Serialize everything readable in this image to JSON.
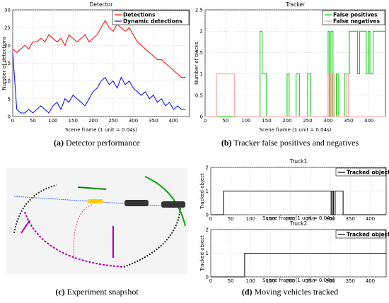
{
  "captions": {
    "a_letter": "(a)",
    "a_text": "Detector performance",
    "b_letter": "(b)",
    "b_text": "Tracker false positives and negatives",
    "c_letter": "(c)",
    "c_text": "Experiment snapshot",
    "d_letter": "(d)",
    "d_text": "Moving vehicles tracked"
  },
  "chart_data": [
    {
      "type": "line",
      "title": "Detector",
      "xlabel": "Scene frame (1 unit = 0.04s)",
      "ylabel": "Number of detections",
      "xlim": [
        0,
        440
      ],
      "ylim": [
        0,
        30
      ],
      "xticks": [
        0,
        50,
        100,
        150,
        200,
        250,
        300,
        350,
        400
      ],
      "yticks": [
        0,
        5,
        10,
        15,
        20,
        25,
        30
      ],
      "grid": true,
      "legend_position": "top-right",
      "series": [
        {
          "name": "Detections",
          "color": "#ff0000",
          "x": [
            0,
            10,
            20,
            30,
            40,
            50,
            60,
            70,
            80,
            90,
            100,
            110,
            120,
            130,
            140,
            150,
            160,
            170,
            180,
            190,
            200,
            210,
            220,
            230,
            240,
            250,
            260,
            270,
            280,
            290,
            300,
            310,
            320,
            330,
            340,
            350,
            360,
            370,
            380,
            390,
            400,
            410,
            420,
            430
          ],
          "y": [
            19,
            18,
            19,
            20,
            19,
            21,
            21,
            22,
            21,
            23,
            22,
            21,
            22,
            20,
            23,
            22,
            21,
            22,
            23,
            21,
            22,
            23,
            25,
            27,
            25,
            24,
            26,
            25,
            24,
            25,
            23,
            21,
            20,
            19,
            18,
            17,
            16,
            16,
            15,
            14,
            13,
            12,
            11,
            11
          ]
        },
        {
          "name": "Dynamic detections",
          "color": "#0000ff",
          "x": [
            0,
            10,
            20,
            30,
            40,
            50,
            60,
            70,
            80,
            90,
            100,
            110,
            120,
            130,
            140,
            150,
            160,
            170,
            180,
            190,
            200,
            210,
            220,
            230,
            240,
            250,
            260,
            270,
            280,
            290,
            300,
            310,
            320,
            330,
            340,
            350,
            360,
            370,
            380,
            390,
            400,
            410,
            420,
            430
          ],
          "y": [
            18,
            2,
            1,
            1,
            2,
            1,
            2,
            3,
            2,
            1,
            3,
            4,
            2,
            5,
            4,
            6,
            5,
            4,
            3,
            5,
            7,
            8,
            10,
            11,
            9,
            10,
            8,
            11,
            9,
            10,
            8,
            7,
            6,
            7,
            5,
            6,
            4,
            5,
            3,
            4,
            2,
            3,
            2,
            2
          ]
        }
      ]
    },
    {
      "type": "line",
      "title": "Tracker",
      "xlabel": "Scene frame (1 unit = 0.04s)",
      "ylabel": "Number of tracks",
      "xlim": [
        0,
        440
      ],
      "ylim": [
        0,
        2.5
      ],
      "xticks": [
        0,
        50,
        100,
        150,
        200,
        250,
        300,
        350,
        400
      ],
      "yticks": [
        0,
        0.5,
        1,
        1.5,
        2,
        2.5
      ],
      "grid": true,
      "legend_position": "top-right",
      "series": [
        {
          "name": "False positives",
          "color": "#00cc00",
          "x": [
            0,
            134,
            134,
            139,
            139,
            150,
            150,
            200,
            200,
            205,
            205,
            222,
            222,
            230,
            230,
            250,
            250,
            258,
            258,
            300,
            300,
            303,
            303,
            307,
            307,
            312,
            312,
            320,
            320,
            326,
            326,
            340,
            340,
            352,
            352,
            372,
            372,
            377,
            377,
            393,
            393,
            398,
            398,
            402,
            402,
            410,
            410,
            440
          ],
          "y": [
            0,
            0,
            2,
            2,
            1,
            1,
            0,
            0,
            1,
            1,
            0,
            0,
            1,
            1,
            0,
            0,
            1,
            1,
            0,
            0,
            2,
            2,
            0,
            0,
            2,
            2,
            0,
            0,
            1,
            1,
            0,
            0,
            1,
            1,
            2,
            2,
            1,
            1,
            2,
            2,
            1,
            1,
            2,
            2,
            1,
            1,
            2,
            2
          ]
        },
        {
          "name": "False negatives",
          "color": "#ff9999",
          "x": [
            0,
            28,
            28,
            72,
            72,
            300,
            300,
            306,
            306,
            310,
            310,
            315,
            315,
            345,
            345,
            350,
            350,
            440
          ],
          "y": [
            0,
            0,
            1,
            1,
            0,
            0,
            1,
            1,
            0,
            0,
            1,
            1,
            0,
            0,
            1,
            1,
            0,
            0
          ]
        }
      ]
    },
    {
      "type": "line",
      "title": "Truck1",
      "xlabel": "Scene frame (1 unit = 0.04s)",
      "ylabel": "Tracked object",
      "xlim": [
        0,
        440
      ],
      "ylim": [
        0,
        2
      ],
      "xticks": [
        0,
        50,
        100,
        150,
        200,
        250,
        300,
        350,
        400
      ],
      "yticks": [
        0,
        1,
        2
      ],
      "grid": true,
      "legend_position": "top-right",
      "series": [
        {
          "name": "Tracked object",
          "color": "#000000",
          "x": [
            0,
            32,
            32,
            302,
            302,
            305,
            305,
            308,
            308,
            312,
            312,
            332,
            332,
            354,
            354,
            440
          ],
          "y": [
            0,
            0,
            1,
            1,
            0,
            0,
            1,
            1,
            0,
            0,
            1,
            1,
            0,
            0,
            0,
            0
          ]
        }
      ]
    },
    {
      "type": "line",
      "title": "Truck2",
      "xlabel": "Scene frame (1 unit = 0.04s)",
      "ylabel": "Tracked object",
      "xlim": [
        0,
        440
      ],
      "ylim": [
        0,
        2
      ],
      "xticks": [
        0,
        50,
        100,
        150,
        200,
        250,
        300,
        350,
        400
      ],
      "yticks": [
        0,
        1,
        2
      ],
      "grid": true,
      "legend_position": "top-right",
      "series": [
        {
          "name": "Tracked object",
          "color": "#000000",
          "x": [
            0,
            85,
            85,
            440
          ],
          "y": [
            0,
            0,
            1,
            1
          ]
        }
      ]
    }
  ]
}
